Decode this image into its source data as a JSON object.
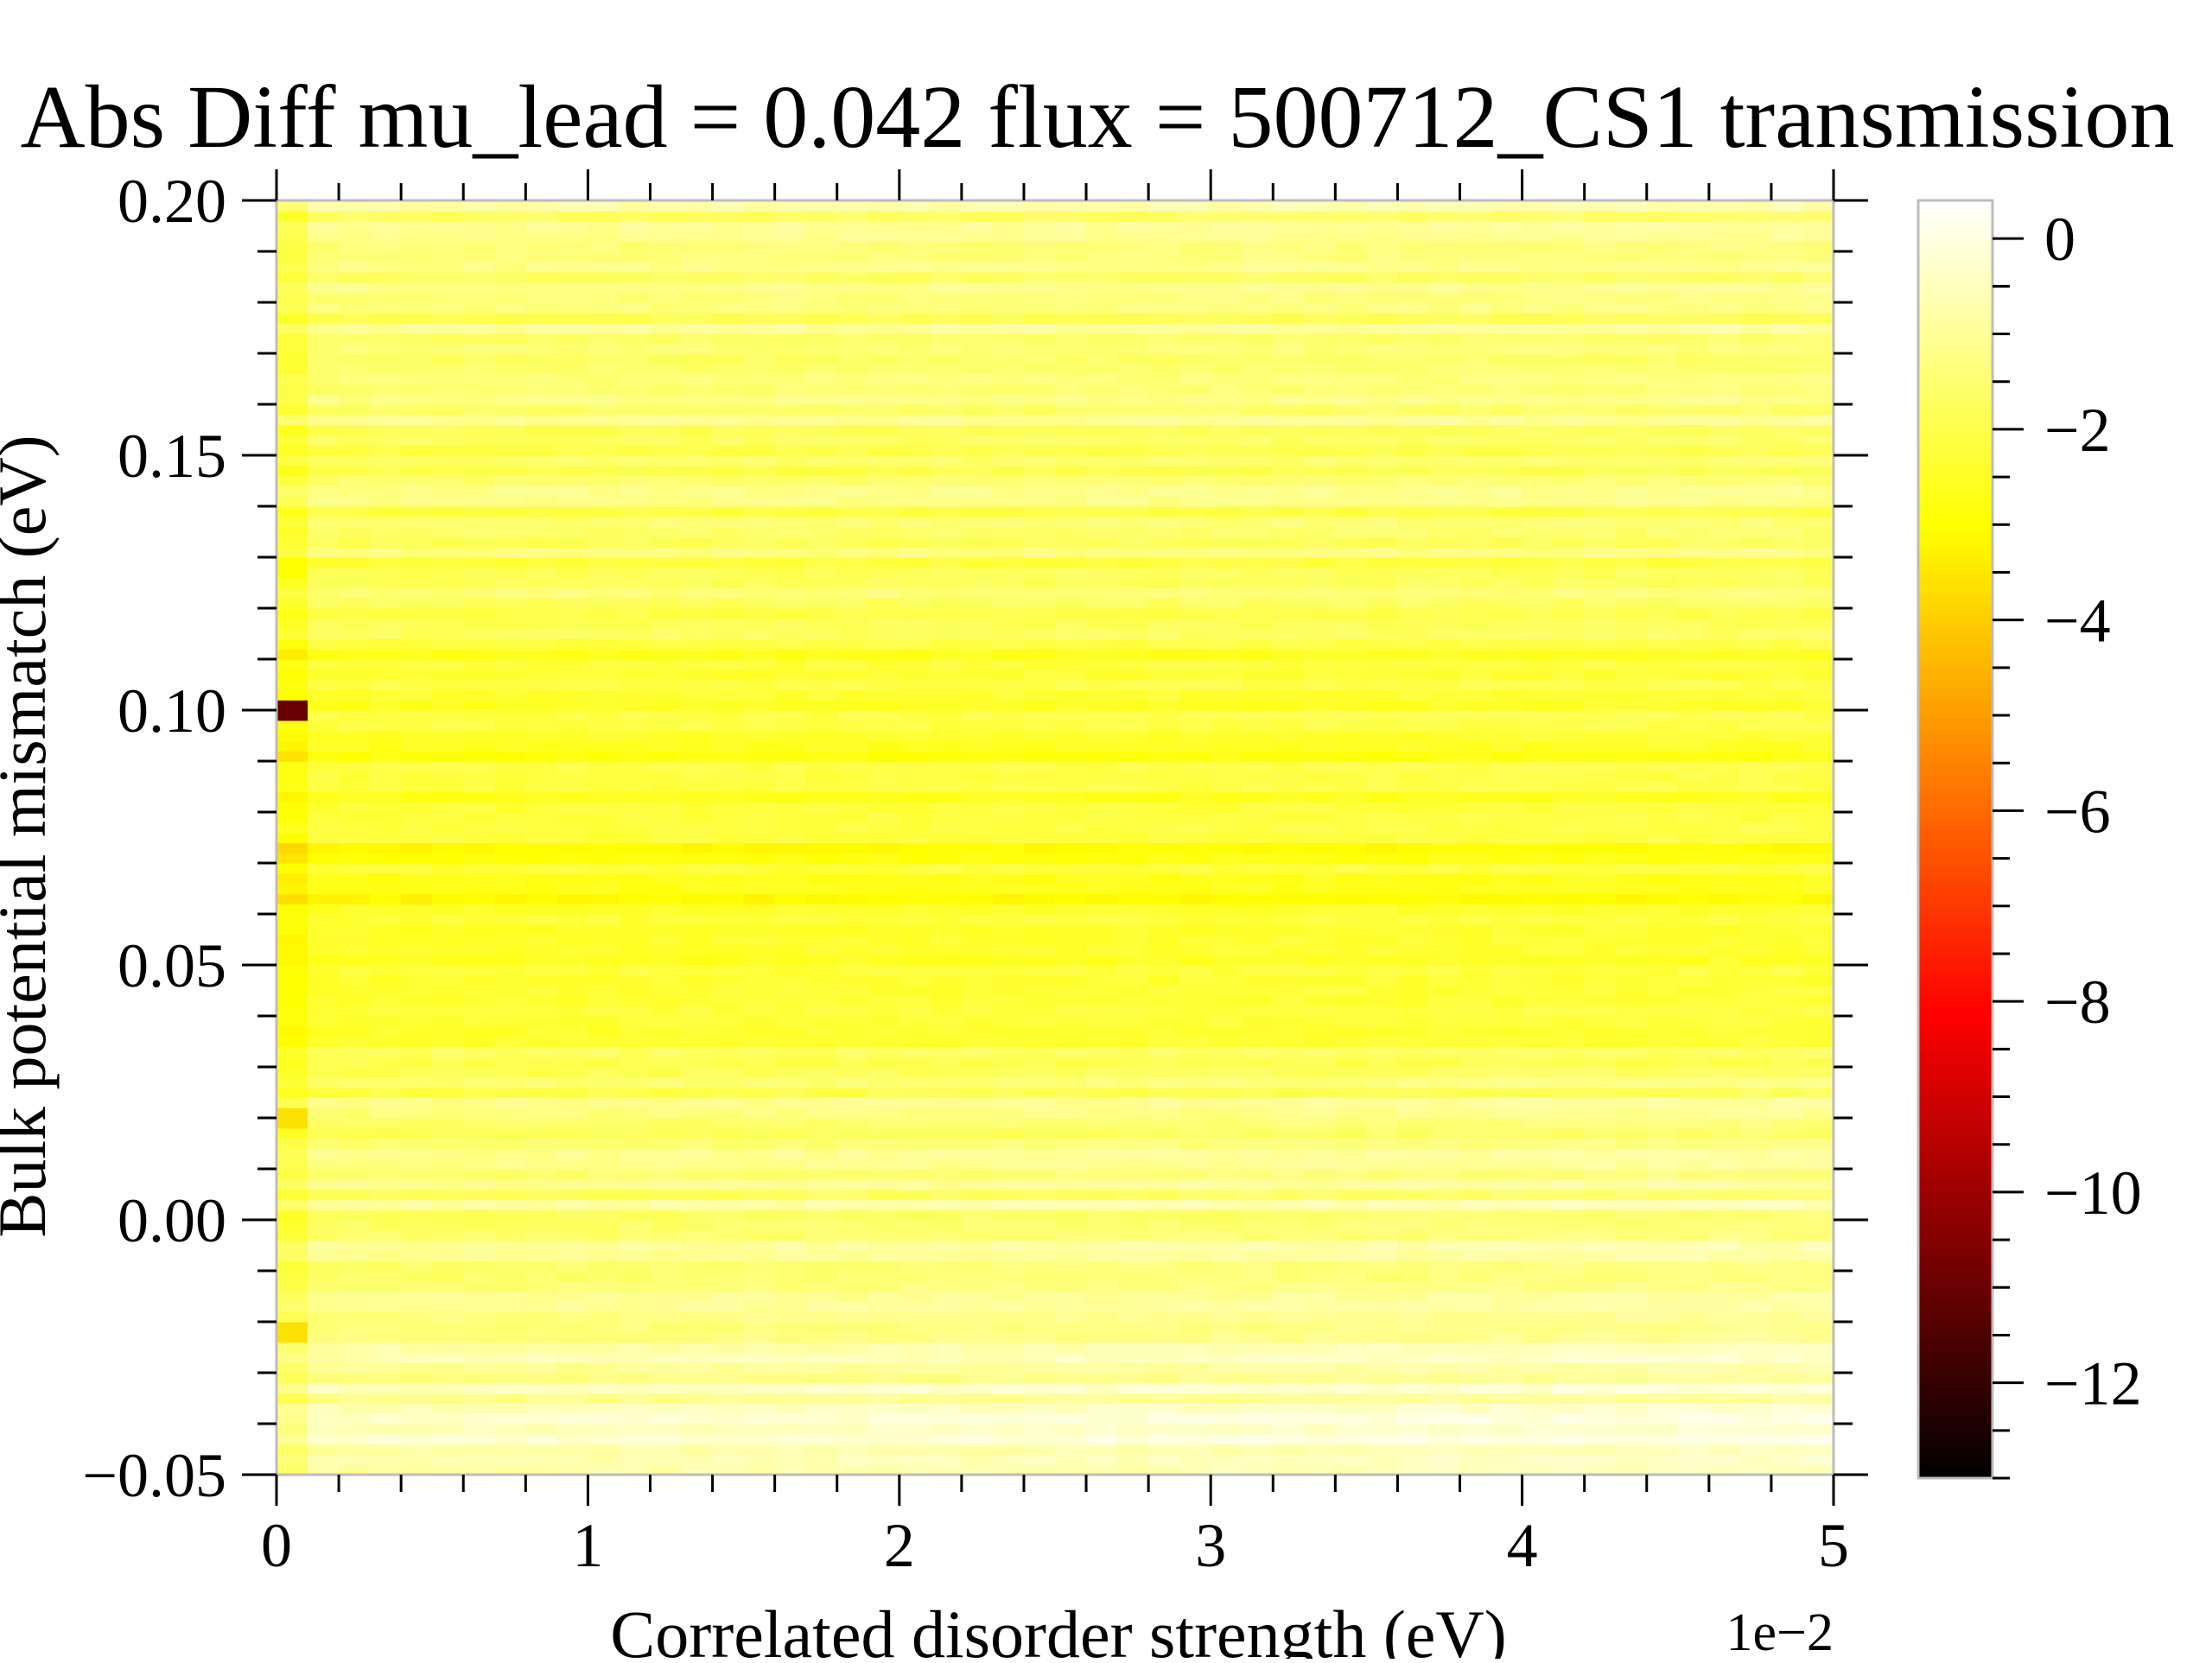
{
  "chart_data": {
    "type": "heatmap",
    "title": "Abs Diff mu_lead = 0.042 flux = 500712_CS1 transmission",
    "xlabel": "Correlated disorder strength (eV)",
    "ylabel": "Bulk potential mismatch (eV)",
    "x_offset_text": "1e−2",
    "xlim": [
      0,
      0.05
    ],
    "ylim": [
      -0.05,
      0.2
    ],
    "x_ticks": [
      0,
      0.01,
      0.02,
      0.03,
      0.04,
      0.05
    ],
    "x_tick_labels": [
      "0",
      "1",
      "2",
      "3",
      "4",
      "5"
    ],
    "y_ticks": [
      -0.05,
      0.0,
      0.05,
      0.1,
      0.15,
      0.2
    ],
    "y_tick_labels": [
      "−0.05",
      "0.00",
      "0.05",
      "0.10",
      "0.15",
      "0.20"
    ],
    "colormap": "hot",
    "colorbar": {
      "vmin": -13,
      "vmax": 0.4,
      "ticks": [
        0,
        -2,
        -4,
        -6,
        -8,
        -10,
        -12
      ],
      "tick_labels": [
        "0",
        "−2",
        "−4",
        "−6",
        "−8",
        "−10",
        "−12"
      ]
    },
    "grid": false,
    "x_bins": 50,
    "y_bins": 125,
    "value_profile": {
      "description_points_y": [
        -0.05,
        -0.03,
        -0.01,
        0.0,
        0.02,
        0.04,
        0.065,
        0.09,
        0.1,
        0.12,
        0.15,
        0.18,
        0.2
      ],
      "base_values": [
        -0.6,
        -0.9,
        -1.2,
        -1.4,
        -1.6,
        -2.1,
        -2.8,
        -2.4,
        -2.5,
        -1.9,
        -1.6,
        -1.4,
        -1.2
      ]
    },
    "annotations": [
      {
        "x": 0.0,
        "y": 0.1,
        "value": -11.0
      },
      {
        "x": 0.0,
        "y": 0.02,
        "value": -3.6
      },
      {
        "x": 0.0,
        "y": -0.022,
        "value": -3.6
      },
      {
        "x": 0.0,
        "y": 0.128,
        "value": -3.0
      }
    ]
  },
  "colors": {
    "frame": "#bdbdbd",
    "tick": "#000000"
  }
}
